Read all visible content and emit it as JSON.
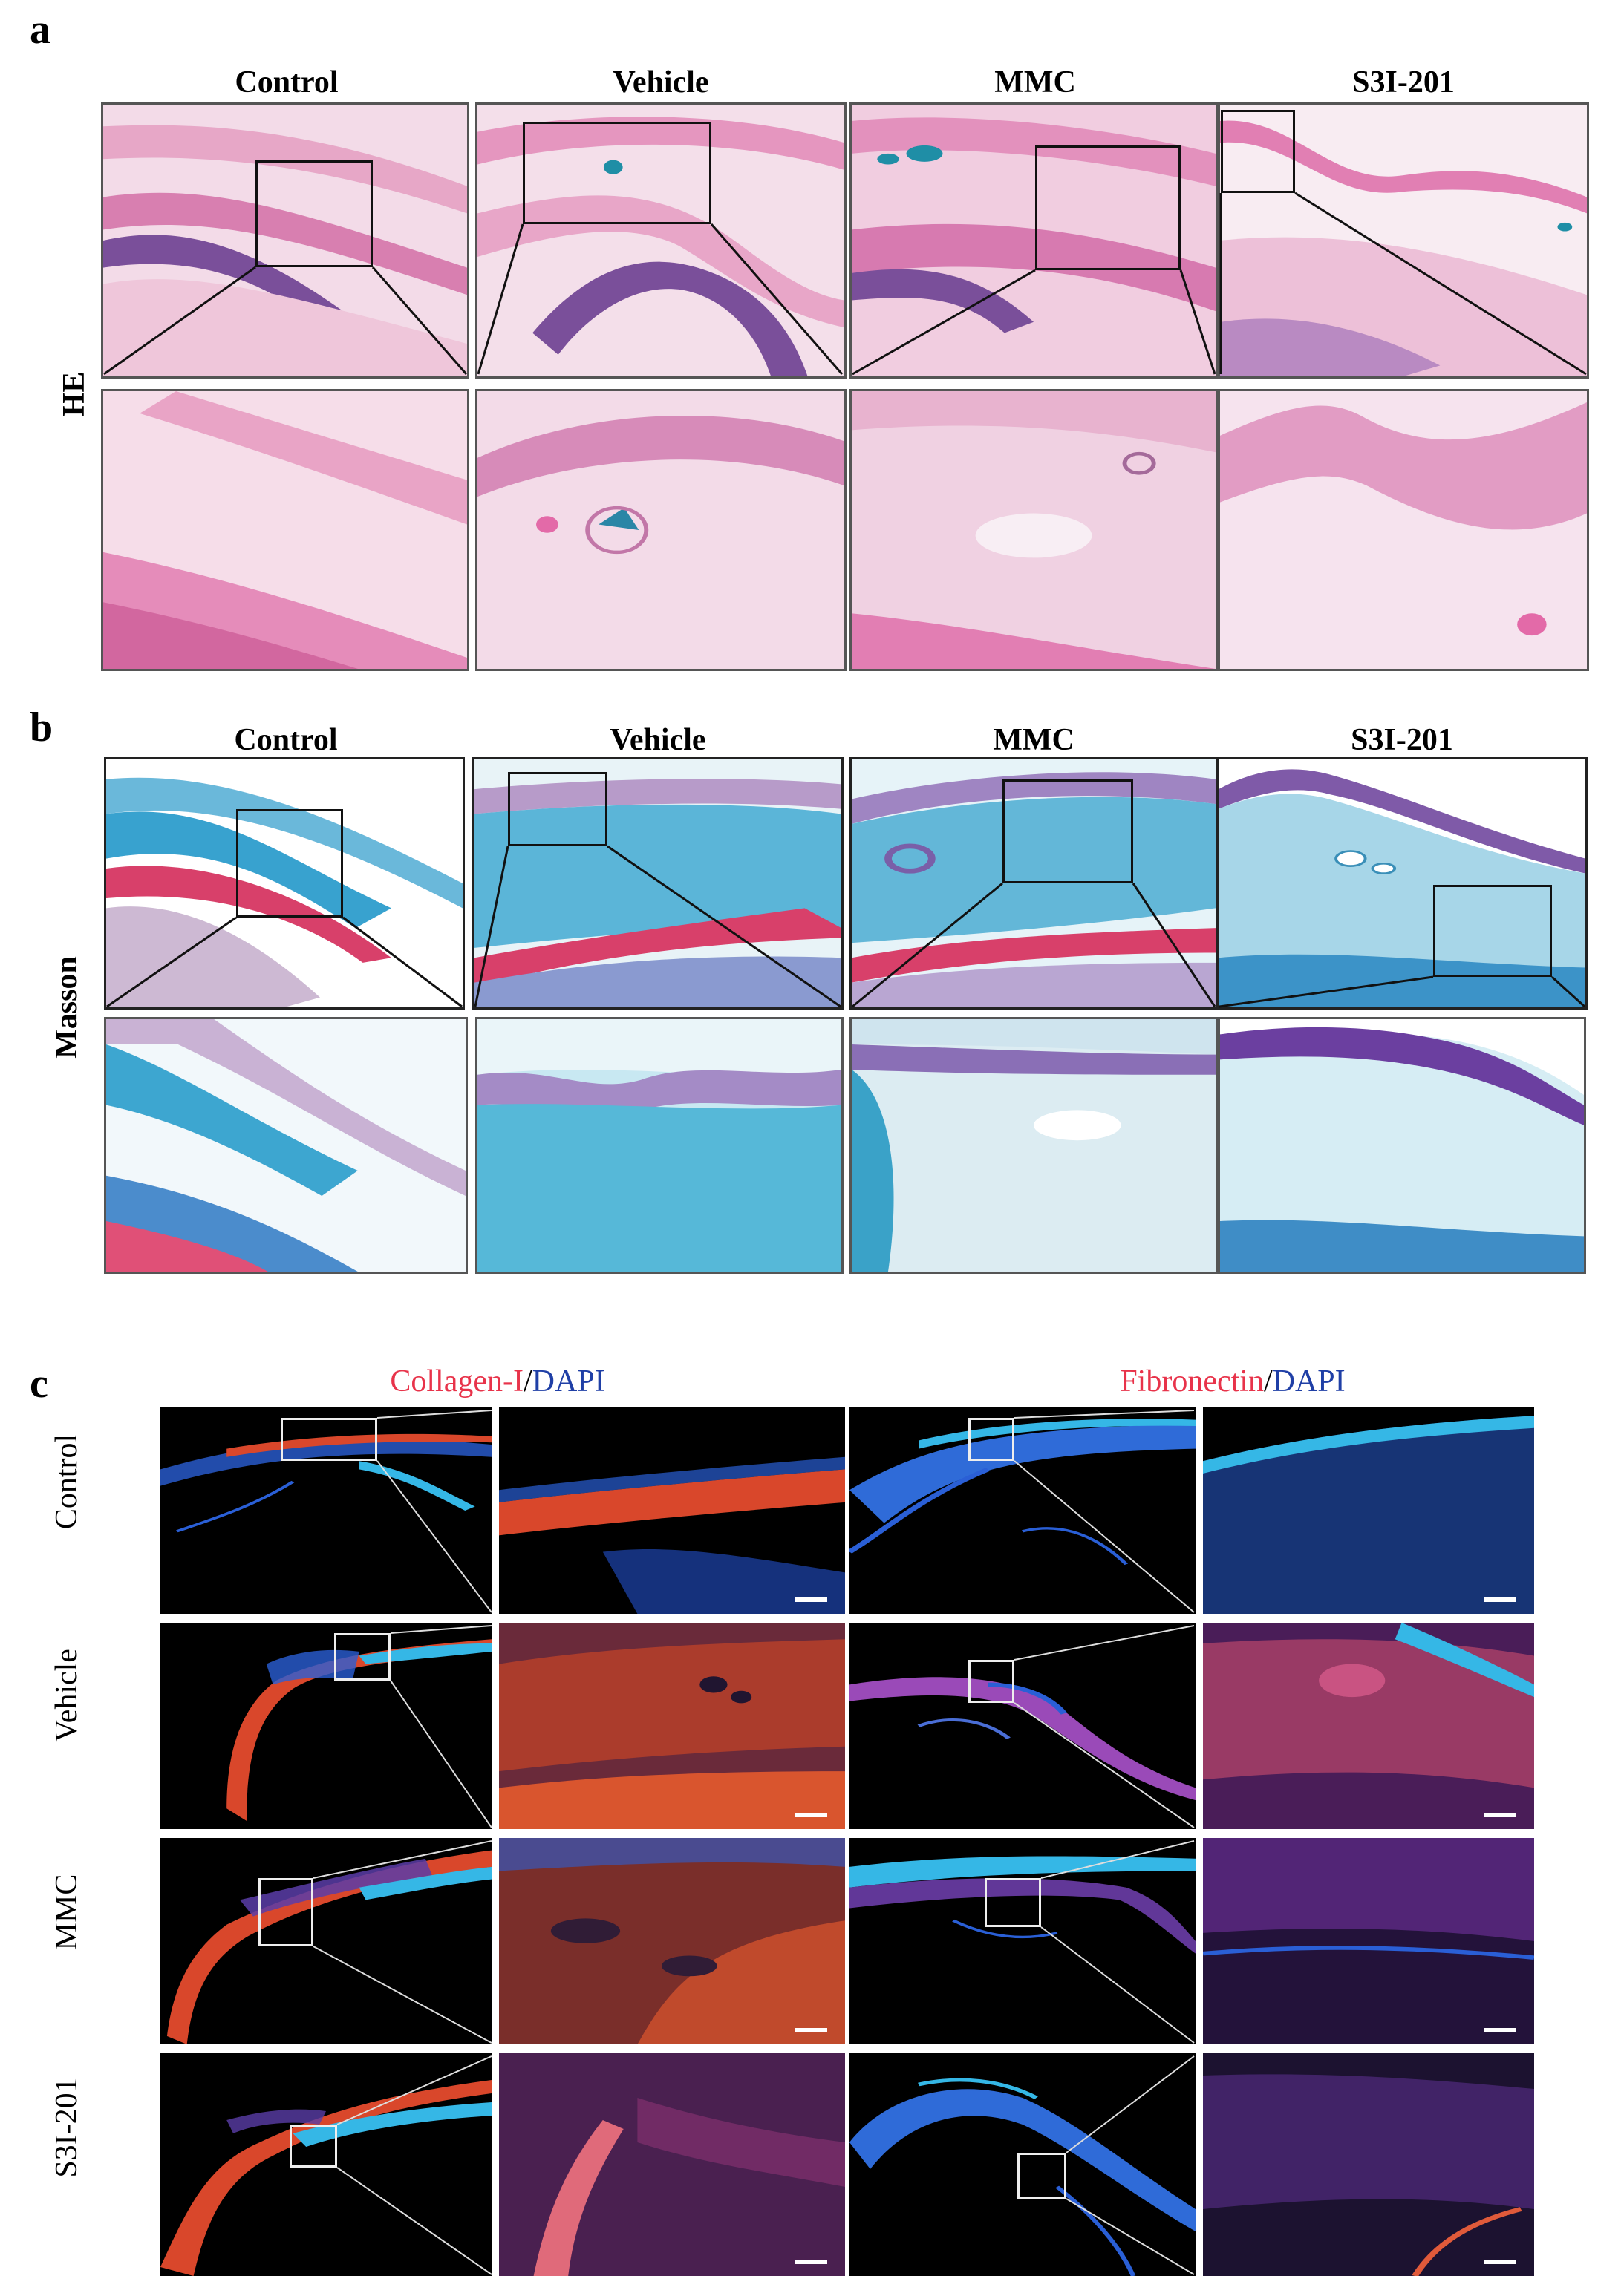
{
  "panels": {
    "a": {
      "letter": "a",
      "row_label": "HE",
      "columns": [
        "Control",
        "Vehicle",
        "MMC",
        "S3I-201"
      ]
    },
    "b": {
      "letter": "b",
      "row_label": "Masson",
      "columns": [
        "Control",
        "Vehicle",
        "MMC",
        "S3I-201"
      ]
    },
    "c": {
      "letter": "c",
      "headers": [
        {
          "stain": "Collagen-I",
          "sep": "/",
          "counter": "DAPI"
        },
        {
          "stain": "Fibronectin",
          "sep": "/",
          "counter": "DAPI"
        }
      ],
      "rows": [
        "Control",
        "Vehicle",
        "MMC",
        "S3I-201"
      ]
    }
  },
  "colors": {
    "he_pink": "#e9a6c6",
    "he_purple": "#7a4f9a",
    "masson_blue": "#3aa8d0",
    "masson_red": "#d8406a",
    "fluor_red": "#d9472b",
    "fluor_blue": "#2a5fd6",
    "label_red": "#e8334a",
    "label_blue": "#1f3fa6"
  }
}
